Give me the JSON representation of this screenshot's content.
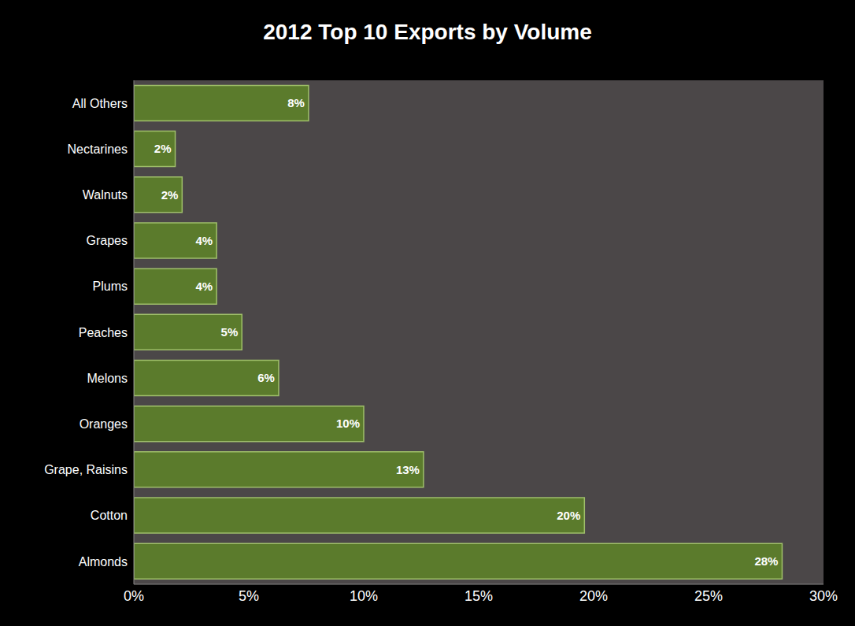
{
  "chart_data": {
    "type": "bar",
    "title": "2012 Top 10 Exports by Volume",
    "orientation": "horizontal",
    "categories": [
      "All Others",
      "Nectarines",
      "Walnuts",
      "Grapes",
      "Plums",
      "Peaches",
      "Melons",
      "Oranges",
      "Grape, Raisins",
      "Cotton",
      "Almonds"
    ],
    "values": [
      7.6,
      1.8,
      2.1,
      3.6,
      3.6,
      4.7,
      6.3,
      10,
      12.6,
      19.6,
      28.2
    ],
    "value_labels": [
      "8%",
      "2%",
      "2%",
      "4%",
      "4%",
      "5%",
      "6%",
      "10%",
      "13%",
      "20%",
      "28%"
    ],
    "color": "#5b7b2c",
    "xlim": [
      0,
      30
    ],
    "xticks": [
      {
        "value": 0,
        "label": "0%"
      },
      {
        "value": 5,
        "label": "5%"
      },
      {
        "value": 10,
        "label": "10%"
      },
      {
        "value": 15,
        "label": "15%"
      },
      {
        "value": 20,
        "label": "20%"
      },
      {
        "value": 25,
        "label": "25%"
      },
      {
        "value": 30,
        "label": "30%"
      }
    ],
    "data_labels": true,
    "grid": false
  }
}
